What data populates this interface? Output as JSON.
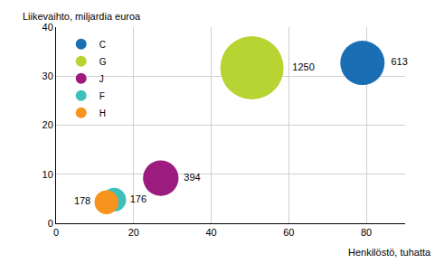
{
  "chart_data": {
    "type": "bubble",
    "x_label": "Henkilöstö, tuhatta",
    "y_label": "Liikevaihto, miljardia euroa",
    "series": [
      {
        "name": "C",
        "color": "#1a6eb4",
        "x": [
          79
        ],
        "values": [
          32.7
        ],
        "size": [
          613
        ]
      },
      {
        "name": "G",
        "color": "#b7d433",
        "x": [
          50.5
        ],
        "values": [
          31.7
        ],
        "size": [
          1250
        ]
      },
      {
        "name": "J",
        "color": "#9c1b7e",
        "x": [
          27
        ],
        "values": [
          9.2
        ],
        "size": [
          394
        ]
      },
      {
        "name": "F",
        "color": "#3fbfb9",
        "x": [
          15
        ],
        "values": [
          4.8
        ],
        "size": [
          176
        ]
      },
      {
        "name": "H",
        "color": "#f7941d",
        "x": [
          13
        ],
        "values": [
          4.3
        ],
        "size": [
          178
        ]
      }
    ],
    "xlim": [
      0,
      90
    ],
    "xticks": [
      0,
      20,
      40,
      60,
      80
    ],
    "ylim": [
      0,
      40
    ],
    "yticks": [
      0,
      10,
      20,
      30,
      40
    ],
    "grid": true,
    "legend": "top-left",
    "data_labels": true
  }
}
